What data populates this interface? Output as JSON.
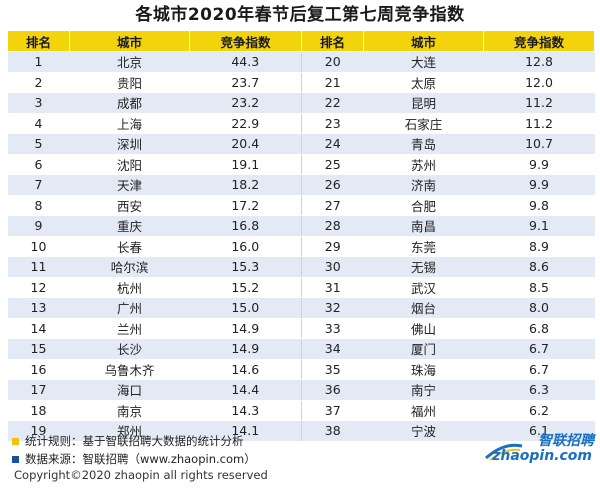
{
  "title": "各城市2020年春节后复工第七周竞争指数",
  "headers": [
    "排名",
    "城市",
    "竞争指数",
    "排名",
    "城市",
    "竞争指数"
  ],
  "rows": [
    {
      "r1": "1",
      "c1": "北京",
      "v1": "44.3",
      "r2": "20",
      "c2": "大连",
      "v2": "12.8"
    },
    {
      "r1": "2",
      "c1": "贵阳",
      "v1": "23.7",
      "r2": "21",
      "c2": "太原",
      "v2": "12.0"
    },
    {
      "r1": "3",
      "c1": "成都",
      "v1": "23.2",
      "r2": "22",
      "c2": "昆明",
      "v2": "11.2"
    },
    {
      "r1": "4",
      "c1": "上海",
      "v1": "22.9",
      "r2": "23",
      "c2": "石家庄",
      "v2": "11.2"
    },
    {
      "r1": "5",
      "c1": "深圳",
      "v1": "20.4",
      "r2": "24",
      "c2": "青岛",
      "v2": "10.7"
    },
    {
      "r1": "6",
      "c1": "沈阳",
      "v1": "19.1",
      "r2": "25",
      "c2": "苏州",
      "v2": "9.9"
    },
    {
      "r1": "7",
      "c1": "天津",
      "v1": "18.2",
      "r2": "26",
      "c2": "济南",
      "v2": "9.9"
    },
    {
      "r1": "8",
      "c1": "西安",
      "v1": "17.2",
      "r2": "27",
      "c2": "合肥",
      "v2": "9.8"
    },
    {
      "r1": "9",
      "c1": "重庆",
      "v1": "16.8",
      "r2": "28",
      "c2": "南昌",
      "v2": "9.1"
    },
    {
      "r1": "10",
      "c1": "长春",
      "v1": "16.0",
      "r2": "29",
      "c2": "东莞",
      "v2": "8.9"
    },
    {
      "r1": "11",
      "c1": "哈尔滨",
      "v1": "15.3",
      "r2": "30",
      "c2": "无锡",
      "v2": "8.6"
    },
    {
      "r1": "12",
      "c1": "杭州",
      "v1": "15.2",
      "r2": "31",
      "c2": "武汉",
      "v2": "8.5"
    },
    {
      "r1": "13",
      "c1": "广州",
      "v1": "15.0",
      "r2": "32",
      "c2": "烟台",
      "v2": "8.0"
    },
    {
      "r1": "14",
      "c1": "兰州",
      "v1": "14.9",
      "r2": "33",
      "c2": "佛山",
      "v2": "6.8"
    },
    {
      "r1": "15",
      "c1": "长沙",
      "v1": "14.9",
      "r2": "34",
      "c2": "厦门",
      "v2": "6.7"
    },
    {
      "r1": "16",
      "c1": "乌鲁木齐",
      "v1": "14.6",
      "r2": "35",
      "c2": "珠海",
      "v2": "6.7"
    },
    {
      "r1": "17",
      "c1": "海口",
      "v1": "14.4",
      "r2": "36",
      "c2": "南宁",
      "v2": "6.3"
    },
    {
      "r1": "18",
      "c1": "南京",
      "v1": "14.3",
      "r2": "37",
      "c2": "福州",
      "v2": "6.2"
    },
    {
      "r1": "19",
      "c1": "郑州",
      "v1": "14.1",
      "r2": "38",
      "c2": "宁波",
      "v2": "6.1"
    }
  ],
  "notes": {
    "rule": "统计规则：基于智联招聘大数据的统计分析",
    "source": "数据来源：智联招聘（www.zhaopin.com）"
  },
  "copyright": "Copyright©2020 zhaopin all rights reserved",
  "logo": {
    "cn": "智联招聘",
    "en": "zhaopin.com"
  },
  "colors": {
    "header": "#f3d40c",
    "stripe": "#e3eaf5",
    "note_rule_square": "#f3c20c",
    "note_source_square": "#1f4e9c",
    "logo": "#1a6fc0"
  }
}
